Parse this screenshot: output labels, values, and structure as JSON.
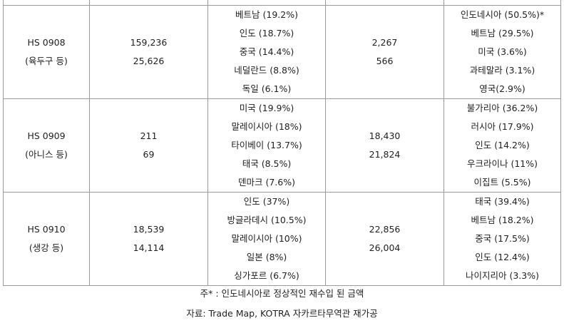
{
  "rows": [
    {
      "code": "HS 0908",
      "name": "(육두구 등)",
      "import_values": [
        "159,236",
        "25,626"
      ],
      "import_countries": [
        "베트남 (19.2%)",
        "인도 (18.7%)",
        "중국 (14.4%)",
        "네덜란드 (8.8%)",
        "독일 (6.1%)"
      ],
      "export_values": [
        "2,267",
        "566"
      ],
      "export_countries": [
        "인도네시아 (50.5%)*",
        "베트남 (29.5%)",
        "미국 (3.6%)",
        "과테말라 (3.1%)",
        "영국(2.9%)"
      ]
    },
    {
      "code": "HS 0909",
      "name": "(아니스 등)",
      "import_values": [
        "211",
        "69"
      ],
      "import_countries": [
        "미국 (19.9%)",
        "말레이시아 (18%)",
        "타이베이 (13.7%)",
        "태국 (8.5%)",
        "덴마크 (7.6%)"
      ],
      "export_values": [
        "18,430",
        "21,824"
      ],
      "export_countries": [
        "불가리아 (36.2%)",
        "러시아 (17.9%)",
        "인도 (14.2%)",
        "우크라이나 (11%)",
        "이집트 (5.5%)"
      ]
    },
    {
      "code": "HS 0910",
      "name": "(생강 등)",
      "import_values": [
        "18,539",
        "14,114"
      ],
      "import_countries": [
        "인도 (37%)",
        "방글라데시 (10.5%)",
        "말레이시아 (10%)",
        "일본 (8%)",
        "싱가포르 (6.7%)"
      ],
      "export_values": [
        "22,856",
        "26,004"
      ],
      "export_countries": [
        "태국 (39.4%)",
        "베트남 (18.2%)",
        "중국 (17.5%)",
        "인도 (12.4%)",
        "나이지리아 (3.3%)"
      ]
    }
  ],
  "notes": {
    "footnote": "주* : 인도네시아로 정상적인 재수입 된 금액",
    "source": "자료: Trade Map, KOTRA 자카르타무역관 재가공"
  }
}
